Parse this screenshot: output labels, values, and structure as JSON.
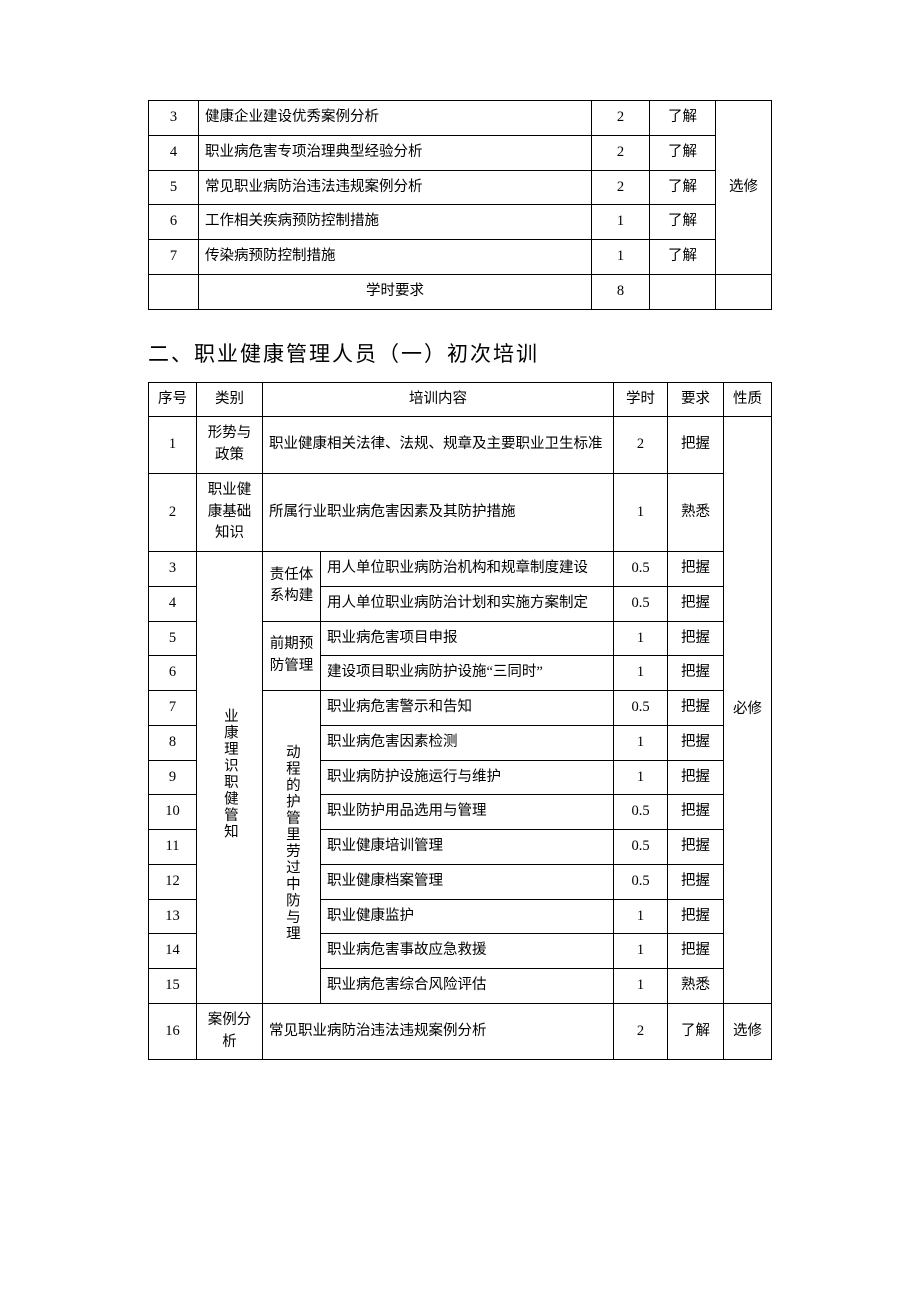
{
  "table1": {
    "nature_label": "选修",
    "rows": [
      {
        "seq": "3",
        "content": "健康企业建设优秀案例分析",
        "hours": "2",
        "req": "了解"
      },
      {
        "seq": "4",
        "content": "职业病危害专项治理典型经验分析",
        "hours": "2",
        "req": "了解"
      },
      {
        "seq": "5",
        "content": "常见职业病防治违法违规案例分析",
        "hours": "2",
        "req": "了解"
      },
      {
        "seq": "6",
        "content": "工作相关疾病预防控制措施",
        "hours": "1",
        "req": "了解"
      },
      {
        "seq": "7",
        "content": "传染病预防控制措施",
        "hours": "1",
        "req": "了解"
      }
    ],
    "footer_label": "学时要求",
    "footer_hours": "8"
  },
  "section2_title": "二、职业健康管理人员（一）初次培训",
  "table2": {
    "headers": {
      "seq": "序号",
      "cat": "类别",
      "content": "培训内容",
      "hours": "学时",
      "req": "要求",
      "nature": "性质"
    },
    "cat1": "形势与政策",
    "cat2": "职业健康基础知识",
    "cat3": "业康理识职健管知",
    "sub1": "责任体系构建",
    "sub2": "前期预防管理",
    "sub3": "动程的护管里劳过中防与理",
    "cat4": "案例分析",
    "nature_required": "必修",
    "nature_elective": "选修",
    "rows": {
      "r1": {
        "seq": "1",
        "content": "职业健康相关法律、法规、规章及主要职业卫生标准",
        "hours": "2",
        "req": "把握"
      },
      "r2": {
        "seq": "2",
        "content": "所属行业职业病危害因素及其防护措施",
        "hours": "1",
        "req": "熟悉"
      },
      "r3": {
        "seq": "3",
        "content": "用人单位职业病防治机构和规章制度建设",
        "hours": "0.5",
        "req": "把握"
      },
      "r4": {
        "seq": "4",
        "content": "用人单位职业病防治计划和实施方案制定",
        "hours": "0.5",
        "req": "把握"
      },
      "r5": {
        "seq": "5",
        "content": "职业病危害项目申报",
        "hours": "1",
        "req": "把握"
      },
      "r6": {
        "seq": "6",
        "content": "建设项目职业病防护设施“三同时”",
        "hours": "1",
        "req": "把握"
      },
      "r7": {
        "seq": "7",
        "content": "职业病危害警示和告知",
        "hours": "0.5",
        "req": "把握"
      },
      "r8": {
        "seq": "8",
        "content": "职业病危害因素检测",
        "hours": "1",
        "req": "把握"
      },
      "r9": {
        "seq": "9",
        "content": "职业病防护设施运行与维护",
        "hours": "1",
        "req": "把握"
      },
      "r10": {
        "seq": "10",
        "content": "职业防护用品选用与管理",
        "hours": "0.5",
        "req": "把握"
      },
      "r11": {
        "seq": "11",
        "content": "职业健康培训管理",
        "hours": "0.5",
        "req": "把握"
      },
      "r12": {
        "seq": "12",
        "content": "职业健康档案管理",
        "hours": "0.5",
        "req": "把握"
      },
      "r13": {
        "seq": "13",
        "content": "职业健康监护",
        "hours": "1",
        "req": "把握"
      },
      "r14": {
        "seq": "14",
        "content": "职业病危害事故应急救援",
        "hours": "1",
        "req": "把握"
      },
      "r15": {
        "seq": "15",
        "content": "职业病危害综合风险评估",
        "hours": "1",
        "req": "熟悉"
      },
      "r16": {
        "seq": "16",
        "content": "常见职业病防治违法违规案例分析",
        "hours": "2",
        "req": "了解"
      }
    }
  }
}
